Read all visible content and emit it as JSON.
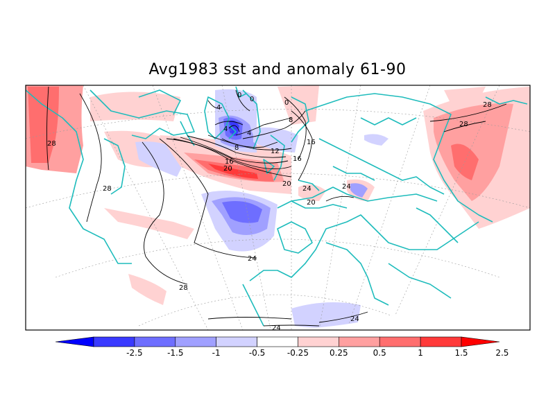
{
  "title": "Avg1983 sst and anomaly 61-90",
  "colorbar": {
    "labels": [
      "-2.5",
      "-1.5",
      "-1",
      "-0.5",
      "-0.25",
      "0.25",
      "0.5",
      "1",
      "1.5",
      "2.5"
    ],
    "colors": [
      "#0000ff",
      "#3a3aff",
      "#6e6eff",
      "#a0a0ff",
      "#d2d2ff",
      "#ffffff",
      "#ffd2d2",
      "#ffa0a0",
      "#ff6e6e",
      "#ff3a3a",
      "#ff0000"
    ]
  },
  "contour_labels": [
    "28",
    "28",
    "28",
    "28",
    "24",
    "24",
    "24",
    "24",
    "24",
    "20",
    "20",
    "20",
    "16",
    "16",
    "16",
    "12",
    "8",
    "8",
    "4",
    "4",
    "4",
    "0",
    "0",
    "0",
    "28"
  ],
  "colors": {
    "coast": "#1ebcbc",
    "contour": "#000000",
    "grid": "#9a9a9a"
  }
}
